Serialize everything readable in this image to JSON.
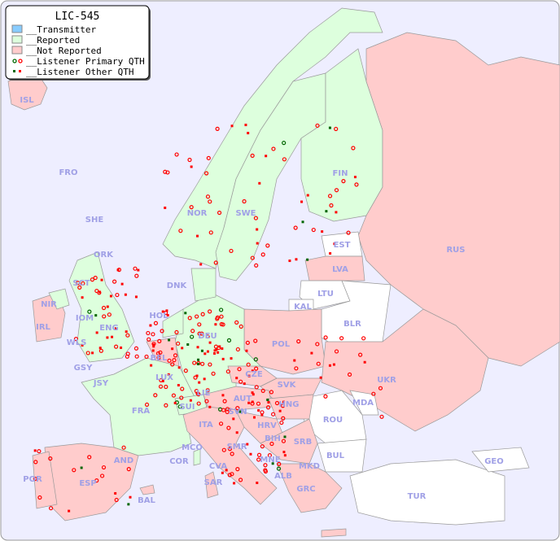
{
  "title": "LIC-545",
  "legend": [
    {
      "label": "__Transmitter",
      "color": "#88ccff"
    },
    {
      "label": "__Reported",
      "color": "#ddffdd"
    },
    {
      "label": "__Not Reported",
      "color": "#ffcccc"
    },
    {
      "label": "__Listener Primary QTH",
      "icon": "ring-marker"
    },
    {
      "label": "__Listener Other QTH",
      "icon": "square-marker"
    }
  ],
  "colors": {
    "sea": "#eeeeff",
    "reported": "#ddffdd",
    "not_reported": "#ffcccc",
    "no_data": "#ffffff",
    "marker_red": "#ff0000",
    "marker_green": "#006600",
    "label": "#a0a0e6"
  },
  "countries": {
    "ISL": "ISL",
    "FRO": "FRO",
    "SHE": "SHE",
    "ORK": "ORK",
    "NOR": "NOR",
    "SWE": "SWE",
    "FIN": "FIN",
    "RUS": "RUS",
    "EST": "EST",
    "LVA": "LVA",
    "LTU": "LTU",
    "KAL": "KAL",
    "BLR": "BLR",
    "POL": "POL",
    "DNK": "DNK",
    "HOL": "HOL",
    "DEU": "DEU",
    "BEL": "BEL",
    "LUX": "LUX",
    "IRL": "IRL",
    "NIR": "NIR",
    "SCT": "SCT",
    "IOM": "IOM",
    "WLS": "WLS",
    "ENG": "ENG",
    "GSY": "GSY",
    "JSY": "JSY",
    "FRA": "FRA",
    "SUI": "SUI",
    "LIE": "LIE",
    "AUT": "AUT",
    "CZE": "CZE",
    "SVK": "SVK",
    "HNG": "HNG",
    "UKR": "UKR",
    "MDA": "MDA",
    "ROU": "ROU",
    "SVN": "SVN",
    "HRV": "HRV",
    "BIH": "BIH",
    "SRB": "SRB",
    "MNE": "MNE",
    "ALB": "ALB",
    "MKD": "MKD",
    "BUL": "BUL",
    "GRC": "GRC",
    "TUR": "TUR",
    "GEO": "GEO",
    "ITA": "ITA",
    "SMR": "SMR",
    "MCO": "MCO",
    "COR": "COR",
    "CVA": "CVA",
    "SAR": "SAR",
    "AND": "AND",
    "ESP": "ESP",
    "POR": "POR",
    "BAL": "BAL"
  }
}
